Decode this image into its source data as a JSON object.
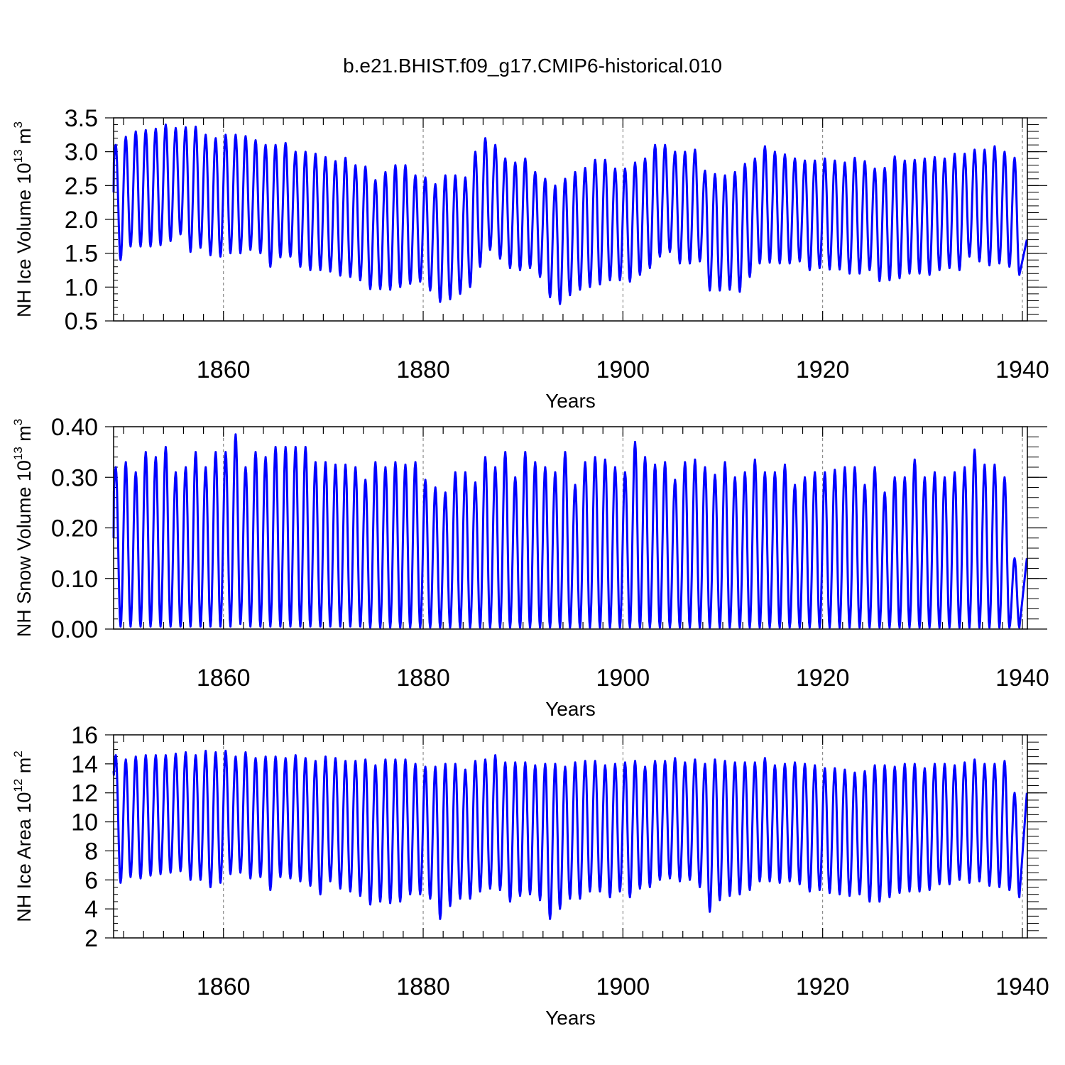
{
  "chart_title": "b.e21.BHIST.f09_g17.CMIP6-historical.010",
  "line_color": "#0000ff",
  "chart_data": [
    {
      "type": "line",
      "name": "nh-ice-volume",
      "ylabel": {
        "main": "NH Ice Volume 10",
        "exp": "13",
        "unit": " m",
        "unit_exp": "3"
      },
      "xlabel": "Years",
      "xlim": [
        1849,
        1940.5
      ],
      "ylim": [
        0.5,
        3.5
      ],
      "yticks": [
        0.5,
        1.0,
        1.5,
        2.0,
        2.5,
        3.0,
        3.5
      ],
      "yticklabels": [
        "0.5",
        "1.0",
        "1.5",
        "2.0",
        "2.5",
        "3.0",
        "3.5"
      ],
      "yminor": 0.1,
      "xticks": [
        1860,
        1880,
        1900,
        1920,
        1940
      ],
      "xticklabels": [
        "1860",
        "1880",
        "1900",
        "1920",
        "1940"
      ],
      "start_value": 2.4,
      "end_value": 1.7,
      "annual_max": [
        3.1,
        3.22,
        3.3,
        3.32,
        3.34,
        3.4,
        3.35,
        3.36,
        3.37,
        3.25,
        3.2,
        3.25,
        3.25,
        3.23,
        3.17,
        3.1,
        3.1,
        3.13,
        3.0,
        3.0,
        2.97,
        2.92,
        2.86,
        2.91,
        2.8,
        2.78,
        2.58,
        2.7,
        2.8,
        2.8,
        2.65,
        2.62,
        2.52,
        2.65,
        2.65,
        2.62,
        3.0,
        3.2,
        3.1,
        2.9,
        2.84,
        2.9,
        2.7,
        2.6,
        2.5,
        2.6,
        2.7,
        2.76,
        2.88,
        2.88,
        2.75,
        2.75,
        2.84,
        2.9,
        3.1,
        3.1,
        3.0,
        3.0,
        3.03,
        2.72,
        2.67,
        2.65,
        2.7,
        2.82,
        2.9,
        3.08,
        3.0,
        2.96,
        2.9,
        2.87,
        2.87,
        2.9,
        2.87,
        2.84,
        2.91,
        2.86,
        2.75,
        2.76,
        2.93,
        2.87,
        2.88,
        2.9,
        2.92,
        2.9,
        2.97,
        2.97,
        3.03,
        3.03,
        3.08,
        3.0,
        2.91
      ],
      "annual_min": [
        1.4,
        1.6,
        1.6,
        1.6,
        1.62,
        1.68,
        1.78,
        1.52,
        1.58,
        1.47,
        1.45,
        1.5,
        1.5,
        1.55,
        1.5,
        1.3,
        1.44,
        1.45,
        1.3,
        1.25,
        1.25,
        1.23,
        1.17,
        1.15,
        1.1,
        0.97,
        0.97,
        0.96,
        1.0,
        1.05,
        1.08,
        0.95,
        0.78,
        0.82,
        0.9,
        1.0,
        1.3,
        1.55,
        1.42,
        1.28,
        1.25,
        1.28,
        1.15,
        0.85,
        0.75,
        0.88,
        0.96,
        1.0,
        1.04,
        1.1,
        1.1,
        1.08,
        1.18,
        1.28,
        1.45,
        1.52,
        1.35,
        1.35,
        1.38,
        0.95,
        0.95,
        0.96,
        0.93,
        1.15,
        1.35,
        1.36,
        1.35,
        1.35,
        1.38,
        1.25,
        1.28,
        1.26,
        1.26,
        1.2,
        1.2,
        1.25,
        1.09,
        1.1,
        1.13,
        1.2,
        1.2,
        1.18,
        1.25,
        1.28,
        1.25,
        1.45,
        1.38,
        1.32,
        1.35,
        1.3,
        1.18
      ]
    },
    {
      "type": "line",
      "name": "nh-snow-volume",
      "ylabel": {
        "main": "NH Snow Volume 10",
        "exp": "13",
        "unit": " m",
        "unit_exp": "3"
      },
      "xlabel": "Years",
      "xlim": [
        1849,
        1940.5
      ],
      "ylim": [
        0.0,
        0.4
      ],
      "yticks": [
        0.0,
        0.1,
        0.2,
        0.3,
        0.4
      ],
      "yticklabels": [
        "0.00",
        "0.10",
        "0.20",
        "0.30",
        "0.40"
      ],
      "yminor": 0.02,
      "xticks": [
        1860,
        1880,
        1900,
        1920,
        1940
      ],
      "xticklabels": [
        "1860",
        "1880",
        "1900",
        "1920",
        "1940"
      ],
      "start_value": 0.18,
      "end_value": 0.14,
      "annual_max": [
        0.32,
        0.33,
        0.31,
        0.35,
        0.34,
        0.36,
        0.31,
        0.32,
        0.35,
        0.32,
        0.35,
        0.35,
        0.385,
        0.32,
        0.35,
        0.34,
        0.36,
        0.36,
        0.36,
        0.36,
        0.33,
        0.33,
        0.325,
        0.325,
        0.32,
        0.295,
        0.33,
        0.32,
        0.33,
        0.325,
        0.33,
        0.295,
        0.28,
        0.27,
        0.31,
        0.31,
        0.29,
        0.34,
        0.32,
        0.35,
        0.3,
        0.35,
        0.33,
        0.32,
        0.31,
        0.35,
        0.285,
        0.33,
        0.34,
        0.335,
        0.32,
        0.31,
        0.37,
        0.34,
        0.325,
        0.33,
        0.295,
        0.33,
        0.335,
        0.32,
        0.305,
        0.33,
        0.3,
        0.31,
        0.335,
        0.31,
        0.31,
        0.325,
        0.285,
        0.3,
        0.31,
        0.31,
        0.315,
        0.32,
        0.32,
        0.285,
        0.32,
        0.27,
        0.3,
        0.3,
        0.335,
        0.3,
        0.31,
        0.3,
        0.31,
        0.32,
        0.355,
        0.325,
        0.325,
        0.3,
        0.14
      ],
      "annual_min": [
        0.005,
        0.005,
        0.005,
        0.005,
        0.005,
        0.005,
        0.005,
        0.005,
        0.005,
        0.005,
        0.005,
        0.005,
        0.01,
        0.005,
        0.005,
        0.005,
        0.005,
        0.005,
        0.005,
        0.005,
        0.005,
        0.005,
        0.005,
        0.005,
        0.005,
        0.003,
        0.003,
        0.003,
        0.003,
        0.003,
        0.003,
        0.003,
        0.003,
        0.003,
        0.003,
        0.003,
        0.003,
        0.003,
        0.003,
        0.003,
        0.003,
        0.003,
        0.003,
        0.003,
        0.003,
        0.003,
        0.003,
        0.003,
        0.003,
        0.003,
        0.003,
        0.003,
        0.003,
        0.003,
        0.003,
        0.003,
        0.003,
        0.003,
        0.003,
        0.003,
        0.003,
        0.003,
        0.003,
        0.003,
        0.003,
        0.003,
        0.003,
        0.003,
        0.003,
        0.003,
        0.003,
        0.003,
        0.003,
        0.003,
        0.003,
        0.003,
        0.003,
        0.003,
        0.003,
        0.003,
        0.003,
        0.003,
        0.003,
        0.003,
        0.003,
        0.003,
        0.003,
        0.003,
        0.003,
        0.003,
        0.003
      ]
    },
    {
      "type": "line",
      "name": "nh-ice-area",
      "ylabel": {
        "main": "NH Ice Area 10",
        "exp": "12",
        "unit": " m",
        "unit_exp": "2"
      },
      "xlabel": "Years",
      "xlim": [
        1849,
        1940.5
      ],
      "ylim": [
        2,
        16
      ],
      "yticks": [
        2,
        4,
        6,
        8,
        10,
        12,
        14,
        16
      ],
      "yticklabels": [
        "2",
        "4",
        "6",
        "8",
        "10",
        "12",
        "14",
        "16"
      ],
      "yminor": 0.5,
      "xticks": [
        1860,
        1880,
        1900,
        1920,
        1940
      ],
      "xticklabels": [
        "1860",
        "1880",
        "1900",
        "1920",
        "1940"
      ],
      "start_value": 13.5,
      "end_value": 12.0,
      "annual_max": [
        14.6,
        14.3,
        14.5,
        14.6,
        14.6,
        14.6,
        14.7,
        14.8,
        14.6,
        14.9,
        14.8,
        14.9,
        14.5,
        14.8,
        14.4,
        14.5,
        14.5,
        14.4,
        14.6,
        14.4,
        14.2,
        14.5,
        14.4,
        14.2,
        14.2,
        14.3,
        13.9,
        14.3,
        14.3,
        14.3,
        14.0,
        13.8,
        13.8,
        14.0,
        14.0,
        13.6,
        14.2,
        14.3,
        14.6,
        14.1,
        14.1,
        14.1,
        13.9,
        14.0,
        14.0,
        13.8,
        14.1,
        14.2,
        14.2,
        13.9,
        14.0,
        14.1,
        14.2,
        13.8,
        14.2,
        14.2,
        14.4,
        14.1,
        14.3,
        14.0,
        14.3,
        14.2,
        14.1,
        14.1,
        14.1,
        14.4,
        13.9,
        14.0,
        14.1,
        14.0,
        13.9,
        13.7,
        13.7,
        13.6,
        13.4,
        13.5,
        13.9,
        13.9,
        13.8,
        14.0,
        14.0,
        13.7,
        14.0,
        14.0,
        13.9,
        14.1,
        14.3,
        14.0,
        14.0,
        14.2,
        12.0
      ],
      "annual_min": [
        5.8,
        6.2,
        6.1,
        6.3,
        6.4,
        6.5,
        6.6,
        6.0,
        6.0,
        5.5,
        5.8,
        6.4,
        6.5,
        6.1,
        6.2,
        5.3,
        6.2,
        6.1,
        5.9,
        5.6,
        5.0,
        5.9,
        5.4,
        5.2,
        4.9,
        4.3,
        4.5,
        4.4,
        4.5,
        5.0,
        5.0,
        4.7,
        3.3,
        4.2,
        4.7,
        4.7,
        5.2,
        5.4,
        5.3,
        4.5,
        4.9,
        5.0,
        4.6,
        3.3,
        4.0,
        4.7,
        4.7,
        5.2,
        5.2,
        4.8,
        5.2,
        4.8,
        5.4,
        5.5,
        6.0,
        6.1,
        5.9,
        6.0,
        5.5,
        3.8,
        4.6,
        4.9,
        5.0,
        5.3,
        5.9,
        5.9,
        5.8,
        5.9,
        5.7,
        5.2,
        5.3,
        5.1,
        5.0,
        4.9,
        5.0,
        4.5,
        4.5,
        4.8,
        5.1,
        5.2,
        5.2,
        5.3,
        5.7,
        5.7,
        6.0,
        5.8,
        5.9,
        5.6,
        5.5,
        5.3,
        4.8
      ]
    }
  ]
}
